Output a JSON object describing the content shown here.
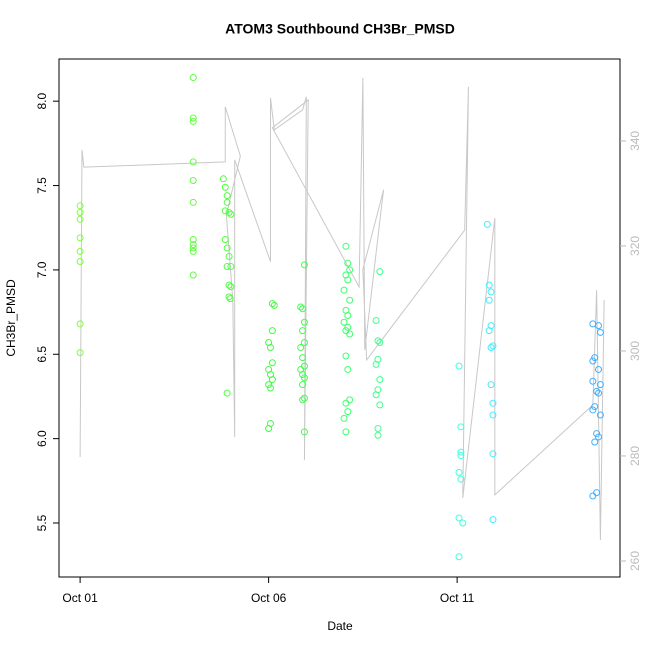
{
  "chart_data": {
    "type": "scatter",
    "title": "ATOM3 Southbound CH3Br_PMSD",
    "x_label": "Date",
    "y_label": "CH3Br_PMSD",
    "xlim": [
      -0.56,
      14.32
    ],
    "xticks": [
      {
        "value": 0,
        "label": "Oct 01"
      },
      {
        "value": 5,
        "label": "Oct 06"
      },
      {
        "value": 10,
        "label": "Oct 11"
      }
    ],
    "ylim": [
      5.18,
      8.25
    ],
    "yticks": [
      {
        "value": 5.5,
        "label": "5.5"
      },
      {
        "value": 6,
        "label": "6.0"
      },
      {
        "value": 6.5,
        "label": "6.5"
      },
      {
        "value": 7,
        "label": "7.0"
      },
      {
        "value": 7.5,
        "label": "7.5"
      },
      {
        "value": 8,
        "label": "8.0"
      }
    ],
    "y2lim": [
      256.95,
      355.6
    ],
    "y2ticks": [
      260,
      280,
      300,
      320,
      340
    ],
    "series": [
      {
        "color": "#80ff40",
        "x": [
          0,
          0,
          0,
          0,
          0,
          0,
          0,
          0
        ],
        "values": [
          7.38,
          7.34,
          7.3,
          7.19,
          7.11,
          7.05,
          6.68,
          6.51
        ]
      },
      {
        "color": "#60ff40",
        "x": [
          3,
          3,
          3,
          3,
          3,
          3,
          3,
          3,
          3,
          3,
          3
        ],
        "values": [
          8.14,
          7.9,
          7.88,
          7.64,
          7.53,
          7.4,
          7.18,
          7.15,
          7.13,
          7.11,
          6.97
        ]
      },
      {
        "color": "#50ff40",
        "x": [
          3.8,
          3.85,
          3.9,
          3.9,
          3.85,
          3.95,
          4.0,
          3.85,
          3.9,
          3.95,
          3.9,
          4.0,
          3.95,
          4.0,
          3.95,
          3.98,
          3.9
        ],
        "values": [
          7.54,
          7.49,
          7.44,
          7.4,
          7.35,
          7.34,
          7.33,
          7.18,
          7.13,
          7.08,
          7.02,
          7.02,
          6.91,
          6.9,
          6.84,
          6.83,
          6.27
        ]
      },
      {
        "color": "#40ff40",
        "x": [
          5.1,
          5.15,
          5.1,
          5.0,
          5.05,
          5.1,
          5.0,
          5.05,
          5.1,
          5.0,
          5.05,
          5.05,
          5.0
        ],
        "values": [
          6.8,
          6.79,
          6.64,
          6.57,
          6.54,
          6.45,
          6.41,
          6.38,
          6.35,
          6.32,
          6.3,
          6.09,
          6.06
        ]
      },
      {
        "color": "#40ff50",
        "x": [
          5.95,
          5.85,
          5.9,
          5.95,
          5.9,
          5.95,
          5.85,
          5.9,
          5.95,
          5.85,
          5.9,
          5.95,
          5.9,
          5.95,
          5.9,
          5.95
        ],
        "values": [
          7.03,
          6.78,
          6.77,
          6.69,
          6.64,
          6.57,
          6.54,
          6.48,
          6.43,
          6.41,
          6.38,
          6.36,
          6.32,
          6.24,
          6.23,
          6.04
        ]
      },
      {
        "color": "#40ff70",
        "x": [
          7.05,
          7.1,
          7.15,
          7.05,
          7.1,
          7.0,
          7.15,
          7.05,
          7.1,
          7.0,
          7.1,
          7.05,
          7.15,
          7.05,
          7.1,
          7.15,
          7.05,
          7.1,
          7.0,
          7.05
        ],
        "values": [
          7.14,
          7.04,
          7.0,
          6.97,
          6.94,
          6.88,
          6.82,
          6.76,
          6.73,
          6.69,
          6.66,
          6.64,
          6.62,
          6.49,
          6.41,
          6.23,
          6.21,
          6.16,
          6.12,
          6.04
        ]
      },
      {
        "color": "#40ff90",
        "x": [
          7.95,
          7.85,
          7.9,
          7.95,
          7.9,
          7.85,
          7.95,
          7.9,
          7.85,
          7.95,
          7.9,
          7.9
        ],
        "values": [
          6.99,
          6.7,
          6.58,
          6.57,
          6.47,
          6.44,
          6.35,
          6.29,
          6.26,
          6.2,
          6.06,
          6.02
        ]
      },
      {
        "color": "#40ffe0",
        "x": [
          10.05,
          10.1,
          10.1,
          10.1,
          10.05,
          10.1,
          10.05,
          10.15,
          10.05
        ],
        "values": [
          6.43,
          6.07,
          5.92,
          5.9,
          5.8,
          5.76,
          5.53,
          5.5,
          5.3
        ]
      },
      {
        "color": "#40f0ff",
        "x": [
          10.8,
          10.85,
          10.9,
          10.85,
          10.9,
          10.85,
          10.95,
          10.9,
          10.9,
          10.95,
          10.95,
          10.95,
          10.95
        ],
        "values": [
          7.27,
          6.91,
          6.87,
          6.82,
          6.67,
          6.64,
          6.55,
          6.54,
          6.32,
          6.21,
          6.14,
          5.91,
          5.52
        ]
      },
      {
        "color": "#40b0ff",
        "x": [
          13.6,
          13.75,
          13.8,
          13.65,
          13.6,
          13.75,
          13.6,
          13.8,
          13.7,
          13.75,
          13.65,
          13.6,
          13.8,
          13.7,
          13.75,
          13.65,
          13.7,
          13.6
        ],
        "values": [
          6.68,
          6.67,
          6.63,
          6.48,
          6.46,
          6.41,
          6.34,
          6.32,
          6.28,
          6.27,
          6.19,
          6.17,
          6.14,
          6.03,
          6.01,
          5.98,
          5.68,
          5.66
        ]
      },
      {
        "color": "#c8c8c8",
        "axis": "y2",
        "line": true,
        "x": [
          0,
          0.05,
          0.1,
          3.85,
          3.85,
          4.25,
          3.88,
          4.05,
          4.1,
          4.1,
          5.05,
          5.05,
          5.15,
          5.9,
          6.0,
          5.95,
          6.05,
          5.1,
          7.4,
          7.5,
          7.55,
          8.0,
          8.05,
          7.5,
          7.6,
          10.2,
          10.3,
          10.15,
          11.0,
          11.0,
          13.6,
          13.7,
          13.8,
          13.9
        ],
        "values": [
          279.8,
          338.3,
          335.0,
          336.0,
          346.5,
          337.1,
          325.9,
          309.7,
          283.6,
          336.4,
          317.0,
          348.2,
          342.1,
          345.9,
          348.4,
          279.2,
          347.8,
          342.5,
          312.2,
          352.0,
          300.2,
          327.8,
          330.7,
          315.5,
          298.3,
          323.0,
          350.3,
          272.0,
          325.3,
          272.6,
          289.7,
          311.6,
          264.0,
          309.7
        ]
      }
    ]
  }
}
